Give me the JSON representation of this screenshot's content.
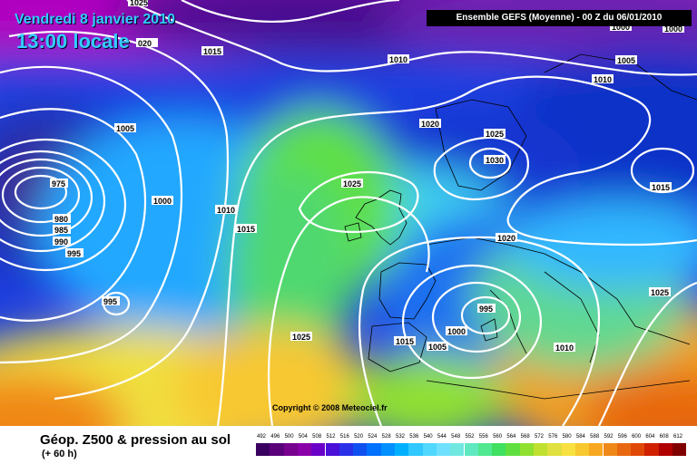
{
  "header": {
    "date": "Vendredi 8 janvier 2010",
    "time": "13:00 locale",
    "run": "Ensemble GEFS (Moyenne)  - 00 Z du 06/01/2010"
  },
  "map": {
    "copyright": "Copyright © 2008 Meteociel.fr",
    "isobar_labels": [
      {
        "text": "1025"
      },
      {
        "text": "020"
      },
      {
        "text": "1015"
      },
      {
        "text": "1010"
      },
      {
        "text": "1005"
      },
      {
        "text": "1010"
      },
      {
        "text": "1000"
      },
      {
        "text": "1005"
      },
      {
        "text": "1020"
      },
      {
        "text": "1025"
      },
      {
        "text": "1030"
      },
      {
        "text": "975"
      },
      {
        "text": "1000"
      },
      {
        "text": "1010"
      },
      {
        "text": "1025"
      },
      {
        "text": "980"
      },
      {
        "text": "985"
      },
      {
        "text": "990"
      },
      {
        "text": "995"
      },
      {
        "text": "1015"
      },
      {
        "text": "1020"
      },
      {
        "text": "1015"
      },
      {
        "text": "995"
      },
      {
        "text": "1025"
      },
      {
        "text": "995"
      },
      {
        "text": "1000"
      },
      {
        "text": "1025"
      },
      {
        "text": "1015"
      },
      {
        "text": "1005"
      },
      {
        "text": "1010"
      },
      {
        "text": "1000"
      }
    ]
  },
  "footer": {
    "product": "Géop. Z500 & pression au sol",
    "lead": "(+ 60 h)"
  },
  "scale": {
    "values": [
      "492",
      "496",
      "500",
      "504",
      "508",
      "512",
      "516",
      "520",
      "524",
      "528",
      "532",
      "536",
      "540",
      "544",
      "548",
      "552",
      "556",
      "560",
      "564",
      "568",
      "572",
      "576",
      "580",
      "584",
      "588",
      "592",
      "596",
      "600",
      "604",
      "608",
      "612"
    ],
    "colors": [
      "#3a0060",
      "#5a007a",
      "#78008f",
      "#8a00a8",
      "#6a00c8",
      "#4a10d8",
      "#2a30e8",
      "#1050f0",
      "#0070ff",
      "#0090ff",
      "#00b0ff",
      "#30c8ff",
      "#50d8ff",
      "#70e0ff",
      "#70e8e0",
      "#60e8c0",
      "#50e890",
      "#40e060",
      "#60e040",
      "#90e030",
      "#c0e030",
      "#e0e040",
      "#f8e040",
      "#f8c830",
      "#f8a820",
      "#f08818",
      "#e86810",
      "#e04808",
      "#d02000",
      "#b00000",
      "#800000"
    ]
  }
}
